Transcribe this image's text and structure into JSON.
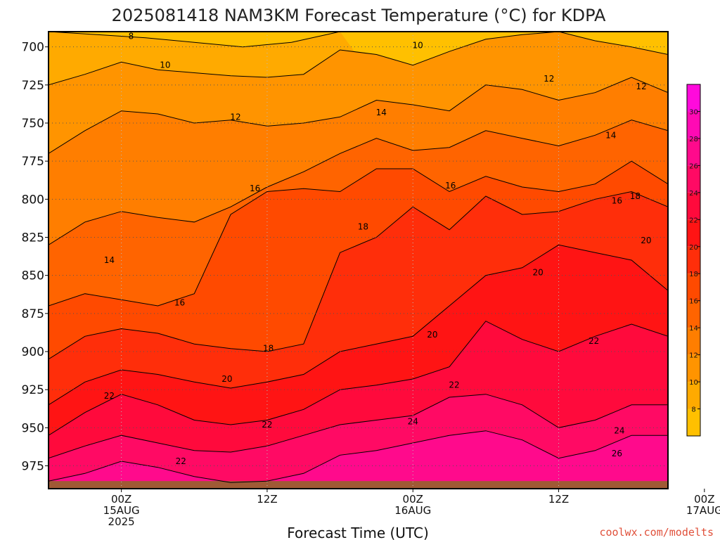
{
  "chart_data": {
    "type": "heatmap",
    "title": "2025081418 NAM3KM Forecast Temperature (°C) for KDPA",
    "xlabel": "Forecast Time (UTC)",
    "ylabel": "",
    "credit": "coolwx.com/modelts",
    "y_axis": {
      "unit": "hPa",
      "inverted": true,
      "ylim": [
        690,
        990
      ],
      "ticks": [
        700,
        725,
        750,
        775,
        800,
        825,
        850,
        875,
        900,
        925,
        950,
        975
      ]
    },
    "x_axis": {
      "xlim_hours": [
        -6,
        45
      ],
      "ticks": [
        {
          "hour": 0,
          "lines": [
            "00Z",
            "15AUG",
            "2025"
          ]
        },
        {
          "hour": 12,
          "lines": [
            "12Z"
          ]
        },
        {
          "hour": 24,
          "lines": [
            "00Z",
            "16AUG"
          ]
        },
        {
          "hour": 36,
          "lines": [
            "12Z"
          ]
        },
        {
          "hour": 48,
          "lines": [
            "00Z",
            "17AUG"
          ]
        }
      ]
    },
    "grid": true,
    "colorbar": {
      "placement": "right",
      "levels": [
        6,
        8,
        10,
        12,
        14,
        16,
        18,
        20,
        22,
        24,
        26,
        28,
        30,
        32
      ],
      "colors": [
        "#ffc000",
        "#ffaa00",
        "#ff9400",
        "#ff7e00",
        "#ff6400",
        "#ff4a00",
        "#ff2e0a",
        "#ff1414",
        "#ff0a3c",
        "#ff0a64",
        "#ff0a8c",
        "#ff0ab4",
        "#ff0adc"
      ],
      "tick_labels": [
        "8",
        "10",
        "12",
        "14",
        "16",
        "18",
        "20",
        "22",
        "24",
        "26",
        "28",
        "30"
      ]
    },
    "series": [
      {
        "name": "8",
        "level": 8,
        "x": [
          -6,
          -2,
          2,
          6,
          10,
          14,
          18
        ],
        "y": [
          690,
          692,
          694,
          697,
          700,
          697,
          690
        ]
      },
      {
        "name": "10",
        "level": 10,
        "x": [
          -6,
          -3,
          0,
          3,
          6,
          9,
          12,
          15,
          18,
          21,
          24,
          27,
          30,
          33,
          36,
          39,
          42,
          45
        ],
        "y": [
          725,
          718,
          710,
          715,
          717,
          719,
          720,
          718,
          702,
          705,
          712,
          703,
          695,
          692,
          690,
          696,
          700,
          705
        ]
      },
      {
        "name": "12",
        "level": 12,
        "x": [
          -6,
          -3,
          0,
          3,
          6,
          9,
          12,
          15,
          18,
          21,
          24,
          27,
          30,
          33,
          36,
          39,
          42,
          45
        ],
        "y": [
          770,
          755,
          742,
          744,
          750,
          748,
          752,
          750,
          746,
          735,
          738,
          742,
          725,
          728,
          735,
          730,
          720,
          730
        ]
      },
      {
        "name": "14",
        "level": 14,
        "x": [
          -6,
          -3,
          0,
          3,
          6,
          9,
          12,
          15,
          18,
          21,
          24,
          27,
          30,
          33,
          36,
          39,
          42,
          45
        ],
        "y": [
          830,
          815,
          808,
          812,
          815,
          805,
          792,
          782,
          770,
          760,
          768,
          766,
          755,
          760,
          765,
          758,
          748,
          755
        ]
      },
      {
        "name": "16",
        "level": 16,
        "x": [
          -6,
          -3,
          0,
          3,
          6,
          9,
          12,
          15,
          18,
          21,
          24,
          27,
          30,
          33,
          36,
          39,
          42,
          45
        ],
        "y": [
          870,
          862,
          866,
          870,
          862,
          810,
          795,
          793,
          795,
          780,
          780,
          795,
          785,
          792,
          795,
          790,
          775,
          790
        ]
      },
      {
        "name": "18",
        "level": 18,
        "x": [
          -6,
          -3,
          0,
          3,
          6,
          9,
          12,
          15,
          18,
          21,
          24,
          27,
          30,
          33,
          36,
          39,
          42,
          45
        ],
        "y": [
          905,
          890,
          885,
          888,
          895,
          898,
          900,
          895,
          835,
          825,
          805,
          820,
          798,
          810,
          808,
          800,
          795,
          805
        ]
      },
      {
        "name": "20",
        "level": 20,
        "x": [
          -6,
          -3,
          0,
          3,
          6,
          9,
          12,
          15,
          18,
          21,
          24,
          27,
          30,
          33,
          36,
          39,
          42,
          45
        ],
        "y": [
          935,
          920,
          912,
          915,
          920,
          924,
          920,
          915,
          900,
          895,
          890,
          870,
          850,
          845,
          830,
          835,
          840,
          860
        ]
      },
      {
        "name": "22",
        "level": 22,
        "x": [
          -6,
          -3,
          0,
          3,
          6,
          9,
          12,
          15,
          18,
          21,
          24,
          27,
          30,
          33,
          36,
          39,
          42,
          45
        ],
        "y": [
          955,
          940,
          928,
          935,
          945,
          948,
          945,
          938,
          925,
          922,
          918,
          910,
          880,
          892,
          900,
          890,
          882,
          890
        ]
      },
      {
        "name": "24",
        "level": 24,
        "x": [
          -6,
          -3,
          0,
          3,
          6,
          9,
          12,
          15,
          18,
          21,
          24,
          27,
          30,
          33,
          36,
          39,
          42,
          45
        ],
        "y": [
          970,
          962,
          955,
          960,
          965,
          966,
          962,
          955,
          948,
          945,
          942,
          930,
          928,
          935,
          950,
          945,
          935,
          935
        ]
      },
      {
        "name": "26",
        "level": 26,
        "x": [
          -6,
          -3,
          0,
          3,
          6,
          9,
          12,
          15,
          18,
          21,
          24,
          27,
          30,
          33,
          36,
          39,
          42,
          45
        ],
        "y": [
          985,
          980,
          972,
          976,
          982,
          986,
          985,
          980,
          968,
          965,
          960,
          955,
          952,
          958,
          970,
          965,
          955,
          955
        ]
      }
    ],
    "contour_labels": [
      {
        "text": "8",
        "x": 0.8,
        "y": 693
      },
      {
        "text": "10",
        "x": 24.4,
        "y": 699
      },
      {
        "text": "12",
        "x": 35.2,
        "y": 721
      },
      {
        "text": "12",
        "x": 42.8,
        "y": 726
      },
      {
        "text": "10",
        "x": 3.6,
        "y": 712
      },
      {
        "text": "12",
        "x": 9.4,
        "y": 746
      },
      {
        "text": "14",
        "x": 21.4,
        "y": 743
      },
      {
        "text": "14",
        "x": 40.3,
        "y": 758
      },
      {
        "text": "16",
        "x": 11.0,
        "y": 793
      },
      {
        "text": "16",
        "x": 27.1,
        "y": 791
      },
      {
        "text": "16",
        "x": 40.8,
        "y": 801
      },
      {
        "text": "18",
        "x": 42.3,
        "y": 798
      },
      {
        "text": "18",
        "x": 19.9,
        "y": 818
      },
      {
        "text": "20",
        "x": 43.2,
        "y": 827
      },
      {
        "text": "20",
        "x": 25.6,
        "y": 889
      },
      {
        "text": "20",
        "x": 34.3,
        "y": 848
      },
      {
        "text": "22",
        "x": 38.9,
        "y": 893
      },
      {
        "text": "22",
        "x": 27.4,
        "y": 922
      },
      {
        "text": "14",
        "x": -1.0,
        "y": 840
      },
      {
        "text": "16",
        "x": 4.8,
        "y": 868
      },
      {
        "text": "18",
        "x": 12.1,
        "y": 898
      },
      {
        "text": "20",
        "x": 8.7,
        "y": 918
      },
      {
        "text": "22",
        "x": -1.0,
        "y": 929
      },
      {
        "text": "22",
        "x": 12.0,
        "y": 948
      },
      {
        "text": "22",
        "x": 4.9,
        "y": 972
      },
      {
        "text": "24",
        "x": 24.0,
        "y": 946
      },
      {
        "text": "24",
        "x": 41.0,
        "y": 952
      },
      {
        "text": "26",
        "x": 40.8,
        "y": 967
      }
    ]
  }
}
